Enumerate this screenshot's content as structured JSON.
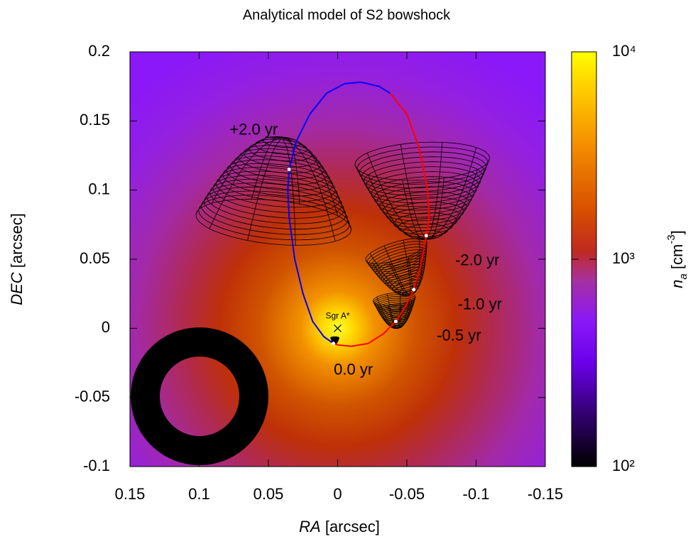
{
  "chart_data": {
    "type": "orbit-map",
    "title": "Analytical model of S2 bowshock",
    "x_label": {
      "symbol": "RA",
      "unit": "[arcsec]"
    },
    "y_label": {
      "symbol": "DEC",
      "unit": "[arcsec]"
    },
    "xlim": [
      0.15,
      -0.15
    ],
    "ylim": [
      -0.1,
      0.2
    ],
    "xticks": [
      0.15,
      0.1,
      0.05,
      0,
      -0.05,
      -0.1,
      -0.15
    ],
    "yticks": [
      -0.1,
      -0.05,
      0,
      0.05,
      0.1,
      0.15,
      0.2
    ],
    "series": [
      {
        "color": "#0000ff",
        "x": [
          0.003,
          0.01,
          0.018,
          0.025,
          0.031,
          0.035,
          0.036,
          0.035,
          0.03,
          0.02,
          0.008,
          -0.005,
          -0.017,
          -0.03,
          -0.038
        ],
        "y": [
          -0.011,
          -0.006,
          0.005,
          0.025,
          0.05,
          0.08,
          0.1,
          0.115,
          0.135,
          0.155,
          0.17,
          0.177,
          0.178,
          0.175,
          0.17
        ]
      },
      {
        "color": "#ff0000",
        "x": [
          -0.038,
          -0.05,
          -0.059,
          -0.065,
          -0.066,
          -0.064,
          -0.06,
          -0.055,
          -0.048,
          -0.042,
          -0.033,
          -0.022,
          -0.01,
          0.0,
          0.003
        ],
        "y": [
          0.17,
          0.155,
          0.13,
          0.1,
          0.08,
          0.067,
          0.045,
          0.028,
          0.014,
          0.005,
          -0.004,
          -0.011,
          -0.013,
          -0.012,
          -0.011
        ]
      }
    ],
    "epochs": {
      "color": "#ffffff",
      "x": [
        0.035,
        -0.064,
        -0.055,
        -0.042,
        0.003
      ],
      "y": [
        0.115,
        0.067,
        0.028,
        0.005,
        -0.011
      ],
      "labels": [
        "+2.0 yr",
        "-2.0 yr",
        "-1.0 yr",
        "-0.5 yr",
        "0.0 yr"
      ]
    },
    "marker": {
      "label": "Sgr A*",
      "x": 0,
      "y": 0
    },
    "colorbar": {
      "label": {
        "symbol": "n",
        "subscript": "a",
        "unit": "[cm",
        "exponent": "-3",
        "close": "]"
      },
      "zlim": [
        100,
        10000
      ],
      "log": true,
      "zticks": [
        {
          "value": 100,
          "label": "10²"
        },
        {
          "value": 1000,
          "label": "10³"
        },
        {
          "value": 10000,
          "label": "10⁴"
        }
      ]
    }
  }
}
